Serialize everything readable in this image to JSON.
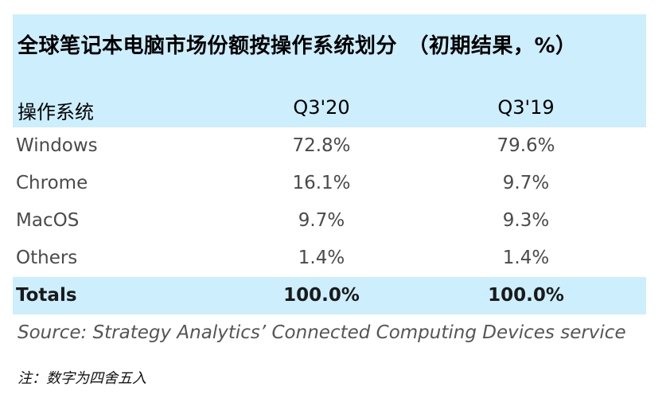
{
  "chart_data": {
    "type": "table",
    "title": "全球笔记本电脑市场份额按操作系统划分　（初期结果，%）",
    "columns": [
      "操作系统",
      "Q3'20",
      "Q3'19"
    ],
    "rows": [
      {
        "os": "Windows",
        "q3_20": "72.8%",
        "q3_19": "79.6%"
      },
      {
        "os": "Chrome",
        "q3_20": "16.1%",
        "q3_19": "9.7%"
      },
      {
        "os": "MacOS",
        "q3_20": "9.7%",
        "q3_19": "9.3%"
      },
      {
        "os": "Others",
        "q3_20": "1.4%",
        "q3_19": "1.4%"
      }
    ],
    "total": {
      "label": "Totals",
      "q3_20": "100.0%",
      "q3_19": "100.0%"
    },
    "source": "Source: Strategy Analytics’ Connected Computing Devices service",
    "note": "注：数字为四舍五入"
  },
  "colors": {
    "header_band": "#cdeefc",
    "total_band": "#cdeefc"
  }
}
